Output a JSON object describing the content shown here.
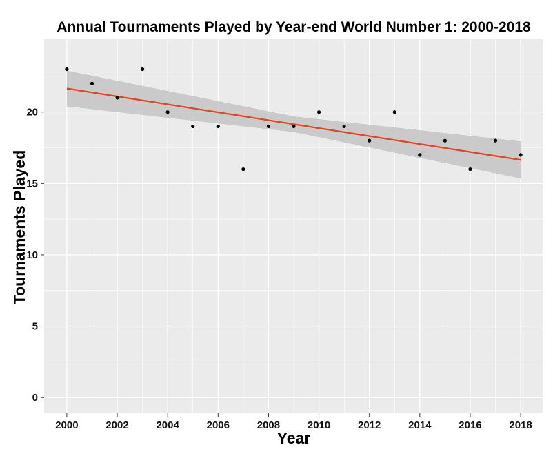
{
  "chart_data": {
    "type": "scatter",
    "title": "Annual Tournaments Played by Year-end World Number 1: 2000-2018",
    "xlabel": "Year",
    "ylabel": "Tournaments Played",
    "xlim": [
      1999.1,
      2018.9
    ],
    "ylim": [
      -1.1,
      25.1
    ],
    "xticks": [
      2000,
      2002,
      2004,
      2006,
      2008,
      2010,
      2012,
      2014,
      2016,
      2018
    ],
    "xtick_labels": [
      "2000",
      "2002",
      "2004",
      "2006",
      "2008",
      "2010",
      "2012",
      "2014",
      "2016",
      "2018"
    ],
    "yticks": [
      0,
      5,
      10,
      15,
      20
    ],
    "ytick_labels": [
      "0",
      "5",
      "10",
      "15",
      "20"
    ],
    "grid": true,
    "points": [
      {
        "x": 2000,
        "y": 23
      },
      {
        "x": 2001,
        "y": 22
      },
      {
        "x": 2002,
        "y": 21
      },
      {
        "x": 2003,
        "y": 23
      },
      {
        "x": 2004,
        "y": 20
      },
      {
        "x": 2005,
        "y": 19
      },
      {
        "x": 2006,
        "y": 19
      },
      {
        "x": 2007,
        "y": 16
      },
      {
        "x": 2008,
        "y": 19
      },
      {
        "x": 2009,
        "y": 19
      },
      {
        "x": 2010,
        "y": 20
      },
      {
        "x": 2011,
        "y": 19
      },
      {
        "x": 2012,
        "y": 18
      },
      {
        "x": 2013,
        "y": 20
      },
      {
        "x": 2014,
        "y": 17
      },
      {
        "x": 2015,
        "y": 18
      },
      {
        "x": 2016,
        "y": 16
      },
      {
        "x": 2017,
        "y": 18
      },
      {
        "x": 2018,
        "y": 17
      }
    ],
    "trend_line": {
      "method": "linear",
      "start": {
        "x": 2000,
        "y": 21.65
      },
      "end": {
        "x": 2018,
        "y": 16.65
      },
      "confidence_band": [
        {
          "x": 2000,
          "lower": 20.4,
          "upper": 22.9
        },
        {
          "x": 2009,
          "lower": 18.6,
          "upper": 19.7
        },
        {
          "x": 2018,
          "lower": 15.35,
          "upper": 17.95
        }
      ]
    },
    "colors": {
      "panel_background": "#ebebeb",
      "grid": "#ffffff",
      "points": "#000000",
      "trend_line": "#e0451f",
      "confidence_band": "#c4c4c4"
    }
  }
}
